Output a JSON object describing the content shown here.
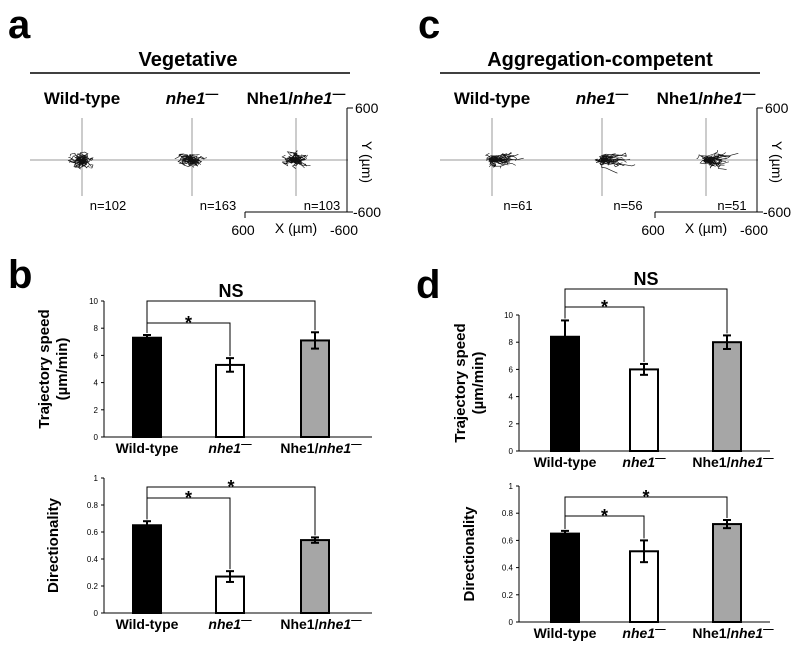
{
  "figure": {
    "panel_labels": {
      "a": "a",
      "b": "b",
      "c": "c",
      "d": "d"
    },
    "titles": {
      "a": "Vegetative",
      "c": "Aggregation-competent"
    },
    "strains": [
      {
        "pre": "Wild-type",
        "ital": "",
        "sup": ""
      },
      {
        "pre": "",
        "ital": "nhe1",
        "sup": "—"
      },
      {
        "pre": "Nhe1/",
        "ital": "nhe1",
        "sup": "—"
      }
    ],
    "track_axes": {
      "x_label": "X (µm)",
      "y_label": "Y (µm)",
      "pos": "600",
      "neg": "-600"
    }
  },
  "chart_data": [
    {
      "panel": "a",
      "type": "scatter",
      "description_free": true,
      "title": "Vegetative",
      "categories": [
        "Wild-type",
        "nhe1—",
        "Nhe1/nhe1—"
      ],
      "n": [
        "n=102",
        "n=163",
        "n=103"
      ],
      "xlim": [
        600,
        -600
      ],
      "ylim": [
        -600,
        600
      ],
      "xlabel": "X (µm)",
      "ylabel": "Y (µm)"
    },
    {
      "panel": "b-top",
      "type": "bar",
      "categories": [
        "Wild-type",
        "nhe1—",
        "Nhe1/nhe1—"
      ],
      "values": [
        7.3,
        5.3,
        7.1
      ],
      "errors": [
        0.2,
        0.5,
        0.6
      ],
      "colors": [
        "#000000",
        "#ffffff",
        "#a6a6a6"
      ],
      "ylabel_lines": [
        "Trajectory speed",
        "(µm/min)"
      ],
      "ylim": [
        0,
        10
      ],
      "yticks": [
        "0",
        "2",
        "4",
        "6",
        "8",
        "10"
      ],
      "significance": [
        {
          "from": 0,
          "to": 1,
          "label": "*"
        },
        {
          "from": 0,
          "to": 2,
          "label": "NS"
        }
      ]
    },
    {
      "panel": "b-bottom",
      "type": "bar",
      "categories": [
        "Wild-type",
        "nhe1—",
        "Nhe1/nhe1—"
      ],
      "values": [
        0.65,
        0.27,
        0.54
      ],
      "errors": [
        0.03,
        0.04,
        0.02
      ],
      "colors": [
        "#000000",
        "#ffffff",
        "#a6a6a6"
      ],
      "ylabel_lines": [
        "Directionality"
      ],
      "ylim": [
        0,
        1
      ],
      "yticks": [
        "0",
        "0.2",
        "0.4",
        "0.6",
        "0.8",
        "1"
      ],
      "significance": [
        {
          "from": 0,
          "to": 1,
          "label": "*"
        },
        {
          "from": 0,
          "to": 2,
          "label": "*"
        }
      ]
    },
    {
      "panel": "c",
      "type": "scatter",
      "title": "Aggregation-competent",
      "categories": [
        "Wild-type",
        "nhe1—",
        "Nhe1/nhe1—"
      ],
      "n": [
        "n=61",
        "n=56",
        "n=51"
      ],
      "xlim": [
        600,
        -600
      ],
      "ylim": [
        -600,
        600
      ],
      "xlabel": "X (µm)",
      "ylabel": "Y (µm)"
    },
    {
      "panel": "d-top",
      "type": "bar",
      "categories": [
        "Wild-type",
        "nhe1—",
        "Nhe1/nhe1—"
      ],
      "values": [
        8.4,
        6.0,
        8.0
      ],
      "errors": [
        1.2,
        0.4,
        0.5
      ],
      "colors": [
        "#000000",
        "#ffffff",
        "#a6a6a6"
      ],
      "ylabel_lines": [
        "Trajectory speed",
        "(µm/min)"
      ],
      "ylim": [
        0,
        10
      ],
      "yticks": [
        "0",
        "2",
        "4",
        "6",
        "8",
        "10"
      ],
      "significance": [
        {
          "from": 0,
          "to": 1,
          "label": "*"
        },
        {
          "from": 0,
          "to": 2,
          "label": "NS"
        }
      ]
    },
    {
      "panel": "d-bottom",
      "type": "bar",
      "categories": [
        "Wild-type",
        "nhe1—",
        "Nhe1/nhe1—"
      ],
      "values": [
        0.65,
        0.52,
        0.72
      ],
      "errors": [
        0.02,
        0.08,
        0.03
      ],
      "colors": [
        "#000000",
        "#ffffff",
        "#a6a6a6"
      ],
      "ylabel_lines": [
        "Directionality"
      ],
      "ylim": [
        0,
        1
      ],
      "yticks": [
        "0",
        "0.2",
        "0.4",
        "0.6",
        "0.8",
        "1"
      ],
      "significance": [
        {
          "from": 0,
          "to": 1,
          "label": "*"
        },
        {
          "from": 0,
          "to": 2,
          "label": "*"
        }
      ]
    }
  ]
}
